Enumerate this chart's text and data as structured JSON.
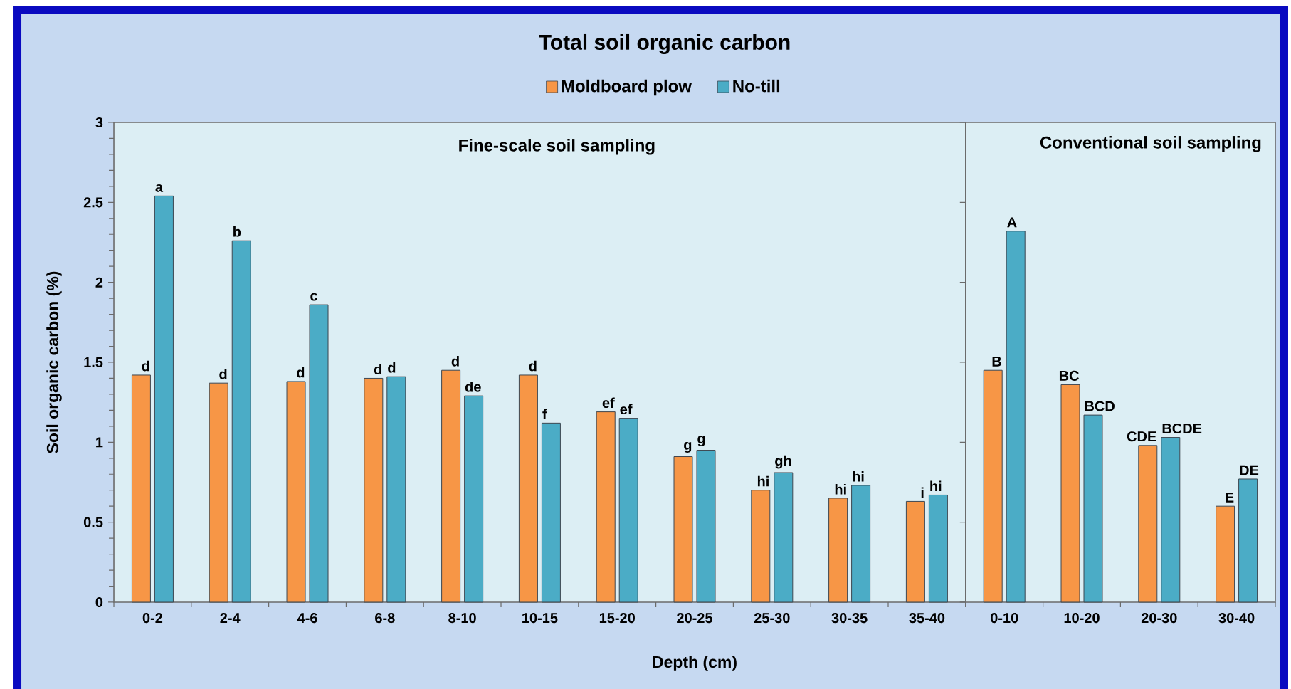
{
  "chart_data": [
    {
      "type": "bar",
      "title": "Total soil organic carbon",
      "xlabel": "Depth (cm)",
      "ylabel": "Soil organic carbon (%)",
      "legend": "top",
      "categories": [
        "0-2",
        "2-4",
        "4-6",
        "6-8",
        "8-10",
        "10-15",
        "15-20",
        "20-25",
        "25-30",
        "30-35",
        "35-40"
      ],
      "series": [
        {
          "name": "Moldboard plow",
          "color": "#f79646",
          "values": [
            1.42,
            1.37,
            1.38,
            1.4,
            1.45,
            1.42,
            1.19,
            0.91,
            0.7,
            0.65,
            0.63
          ],
          "value_labels": [
            "d",
            "d",
            "d",
            "d",
            "d",
            "d",
            "ef",
            "g",
            "hi",
            "hi",
            "i"
          ]
        },
        {
          "name": "No-till",
          "color": "#4bacc6",
          "values": [
            2.54,
            2.26,
            1.86,
            1.41,
            1.29,
            1.12,
            1.15,
            0.95,
            0.81,
            0.73,
            0.67
          ],
          "value_labels": [
            "a",
            "b",
            "c",
            "d",
            "de",
            "f",
            "ef",
            "g",
            "gh",
            "hi",
            "hi"
          ]
        }
      ],
      "ylim": [
        0,
        3
      ],
      "yticks": [
        0,
        0.5,
        1,
        1.5,
        2,
        2.5,
        3
      ],
      "annotations": [
        "Fine-scale soil sampling"
      ]
    },
    {
      "type": "bar",
      "categories": [
        "0-10",
        "10-20",
        "20-30",
        "30-40"
      ],
      "series": [
        {
          "color": "#f79646",
          "values": [
            1.45,
            1.36,
            0.98,
            0.6
          ],
          "value_labels": [
            "B",
            "BC",
            "CDE",
            "E"
          ]
        },
        {
          "color": "#4bacc6",
          "values": [
            2.32,
            1.17,
            1.03,
            0.77
          ],
          "value_labels": [
            "A",
            "BCD",
            "BCDE",
            "DE"
          ]
        }
      ],
      "ylim": [
        0,
        3
      ],
      "yticks": [
        0,
        0.5,
        1,
        1.5,
        2,
        2.5,
        3
      ],
      "tick_labels": "x",
      "annotations": [
        "Conventional soil sampling"
      ]
    }
  ]
}
